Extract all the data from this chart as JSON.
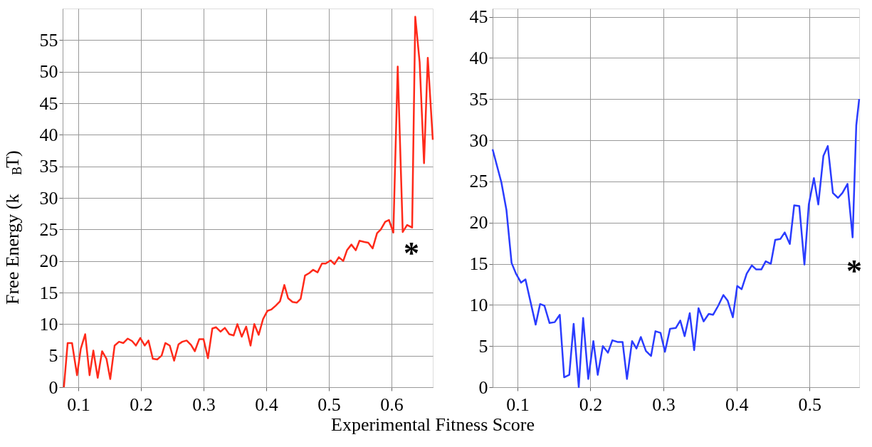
{
  "chart_data": [
    {
      "type": "line",
      "ylabel": "Free Energy (k$_{B}$T)",
      "xlabel": "Experimental Fitness Score",
      "xlim": [
        0.075,
        0.666
      ],
      "ylim": [
        0,
        60
      ],
      "xticks": [
        0.1,
        0.2,
        0.3,
        0.4,
        0.5,
        0.6
      ],
      "yticks": [
        0,
        5,
        10,
        15,
        20,
        25,
        30,
        35,
        40,
        45,
        50,
        55
      ],
      "grid": true,
      "legend": false,
      "line_style": "solid",
      "annotations": [
        "*"
      ],
      "series": [
        {
          "color": "#ff2a1a",
          "x": [
            0.077,
            0.083,
            0.09,
            0.098,
            0.104,
            0.111,
            0.118,
            0.124,
            0.131,
            0.138,
            0.145,
            0.151,
            0.158,
            0.165,
            0.172,
            0.179,
            0.186,
            0.192,
            0.199,
            0.206,
            0.212,
            0.219,
            0.226,
            0.233,
            0.239,
            0.246,
            0.253,
            0.26,
            0.266,
            0.273,
            0.28,
            0.286,
            0.293,
            0.3,
            0.307,
            0.314,
            0.32,
            0.327,
            0.334,
            0.341,
            0.348,
            0.354,
            0.361,
            0.368,
            0.375,
            0.381,
            0.388,
            0.395,
            0.402,
            0.408,
            0.415,
            0.422,
            0.429,
            0.435,
            0.442,
            0.449,
            0.455,
            0.462,
            0.469,
            0.475,
            0.482,
            0.489,
            0.495,
            0.503,
            0.509,
            0.516,
            0.523,
            0.529,
            0.536,
            0.543,
            0.549,
            0.557,
            0.563,
            0.57,
            0.577,
            0.583,
            0.59,
            0.596,
            0.603,
            0.61,
            0.618,
            0.625,
            0.633,
            0.638,
            0.645,
            0.652,
            0.658,
            0.666
          ],
          "values": [
            0,
            7.0,
            7.0,
            1.9,
            6.1,
            8.4,
            1.9,
            5.8,
            1.5,
            5.7,
            4.5,
            1.3,
            6.6,
            7.2,
            7.0,
            7.7,
            7.3,
            6.6,
            7.8,
            6.6,
            7.4,
            4.5,
            4.4,
            5.0,
            7.0,
            6.6,
            4.2,
            6.8,
            7.2,
            7.4,
            6.7,
            5.7,
            7.6,
            7.6,
            4.6,
            9.3,
            9.5,
            8.8,
            9.4,
            8.4,
            8.2,
            10.0,
            8.0,
            9.6,
            6.6,
            10.0,
            8.3,
            10.8,
            12.1,
            12.3,
            12.9,
            13.6,
            16.2,
            14.1,
            13.5,
            13.4,
            14.0,
            17.7,
            18.1,
            18.6,
            18.2,
            19.6,
            19.6,
            20.1,
            19.5,
            20.6,
            20.0,
            21.7,
            22.6,
            21.7,
            23.2,
            23.0,
            22.9,
            22.0,
            24.4,
            25.0,
            26.2,
            26.5,
            24.5,
            50.8,
            24.6,
            25.7,
            25.3,
            58.7,
            51.5,
            35.5,
            52.2,
            39.2
          ]
        }
      ]
    },
    {
      "type": "line",
      "xlim": [
        0.066,
        0.568
      ],
      "ylim": [
        0,
        46
      ],
      "xticks": [
        0.1,
        0.2,
        0.3,
        0.4,
        0.5
      ],
      "yticks": [
        0,
        5,
        10,
        15,
        20,
        25,
        30,
        35,
        40,
        45
      ],
      "grid": true,
      "legend": false,
      "line_style": "solid",
      "annotations": [
        "*"
      ],
      "series": [
        {
          "color": "#2a3cff",
          "x": [
            0.066,
            0.078,
            0.085,
            0.092,
            0.098,
            0.105,
            0.111,
            0.125,
            0.131,
            0.137,
            0.144,
            0.151,
            0.158,
            0.164,
            0.171,
            0.177,
            0.184,
            0.19,
            0.197,
            0.204,
            0.21,
            0.217,
            0.224,
            0.23,
            0.237,
            0.244,
            0.25,
            0.257,
            0.263,
            0.269,
            0.276,
            0.283,
            0.289,
            0.296,
            0.302,
            0.309,
            0.317,
            0.323,
            0.329,
            0.336,
            0.342,
            0.348,
            0.355,
            0.362,
            0.368,
            0.375,
            0.382,
            0.388,
            0.395,
            0.401,
            0.407,
            0.414,
            0.421,
            0.427,
            0.434,
            0.44,
            0.447,
            0.453,
            0.46,
            0.466,
            0.473,
            0.479,
            0.486,
            0.493,
            0.499,
            0.506,
            0.512,
            0.519,
            0.525,
            0.532,
            0.539,
            0.545,
            0.552,
            0.559,
            0.564,
            0.568
          ],
          "values": [
            28.9,
            24.9,
            21.5,
            15.1,
            13.8,
            12.7,
            13.1,
            7.6,
            10.1,
            9.9,
            7.8,
            7.9,
            8.8,
            1.2,
            1.5,
            7.7,
            0,
            8.4,
            1.0,
            5.6,
            1.5,
            5.0,
            4.2,
            5.7,
            5.5,
            5.5,
            1.0,
            5.6,
            4.7,
            6.1,
            4.4,
            3.8,
            6.8,
            6.6,
            4.3,
            7.1,
            7.2,
            8.1,
            6.2,
            9.0,
            4.5,
            9.6,
            8.0,
            8.9,
            8.8,
            9.9,
            11.2,
            10.5,
            8.5,
            12.3,
            11.9,
            13.8,
            14.8,
            14.3,
            14.3,
            15.3,
            15.0,
            17.9,
            18.0,
            18.8,
            17.4,
            22.1,
            22.0,
            14.9,
            22.2,
            25.4,
            22.2,
            28.1,
            29.3,
            23.6,
            23.0,
            23.6,
            24.7,
            18.2,
            31.8,
            35.0
          ]
        }
      ]
    }
  ]
}
